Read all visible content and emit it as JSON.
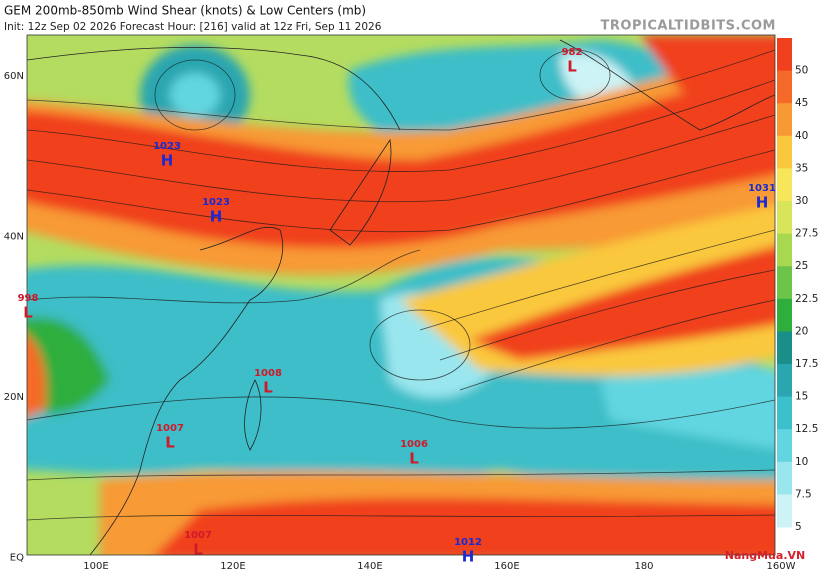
{
  "header": {
    "title": "GEM 200mb-850mb Wind Shear (knots) & Low Centers (mb)",
    "subtitle": "Init: 12z Sep 02 2026   Forecast Hour: [216]   valid at 12z Fri, Sep 11 2026",
    "site": "TROPICALTIDBITS.COM"
  },
  "lat_labels": [
    "60N",
    "40N",
    "20N",
    "EQ"
  ],
  "lon_labels": [
    "100E",
    "120E",
    "140E",
    "160E",
    "180",
    "160W"
  ],
  "colorbar": [
    {
      "label": "50",
      "color": "#f0401e"
    },
    {
      "label": "45",
      "color": "#f56a28"
    },
    {
      "label": "40",
      "color": "#f89a34"
    },
    {
      "label": "35",
      "color": "#fac83c"
    },
    {
      "label": "30",
      "color": "#f7e55a"
    },
    {
      "label": "27.5",
      "color": "#d8e45a"
    },
    {
      "label": "25",
      "color": "#a8d850"
    },
    {
      "label": "22.5",
      "color": "#6cc448"
    },
    {
      "label": "20",
      "color": "#2fae3e"
    },
    {
      "label": "17.5",
      "color": "#1a8f8a"
    },
    {
      "label": "15",
      "color": "#2aa6b0"
    },
    {
      "label": "12.5",
      "color": "#3cc0cc"
    },
    {
      "label": "10",
      "color": "#62d6e0"
    },
    {
      "label": "7.5",
      "color": "#9ae6ee"
    },
    {
      "label": "5",
      "color": "#cdf3f6"
    }
  ],
  "centers": [
    {
      "pressure": "982",
      "type": "L"
    },
    {
      "pressure": "1023",
      "type": "H"
    },
    {
      "pressure": "1023",
      "type": "H"
    },
    {
      "pressure": "1031",
      "type": "H"
    },
    {
      "pressure": "998",
      "type": "L"
    },
    {
      "pressure": "1008",
      "type": "L"
    },
    {
      "pressure": "1007",
      "type": "L"
    },
    {
      "pressure": "1006",
      "type": "L"
    },
    {
      "pressure": "1007",
      "type": "L"
    },
    {
      "pressure": "1012",
      "type": "H"
    }
  ],
  "watermark": "NangMua.VN"
}
